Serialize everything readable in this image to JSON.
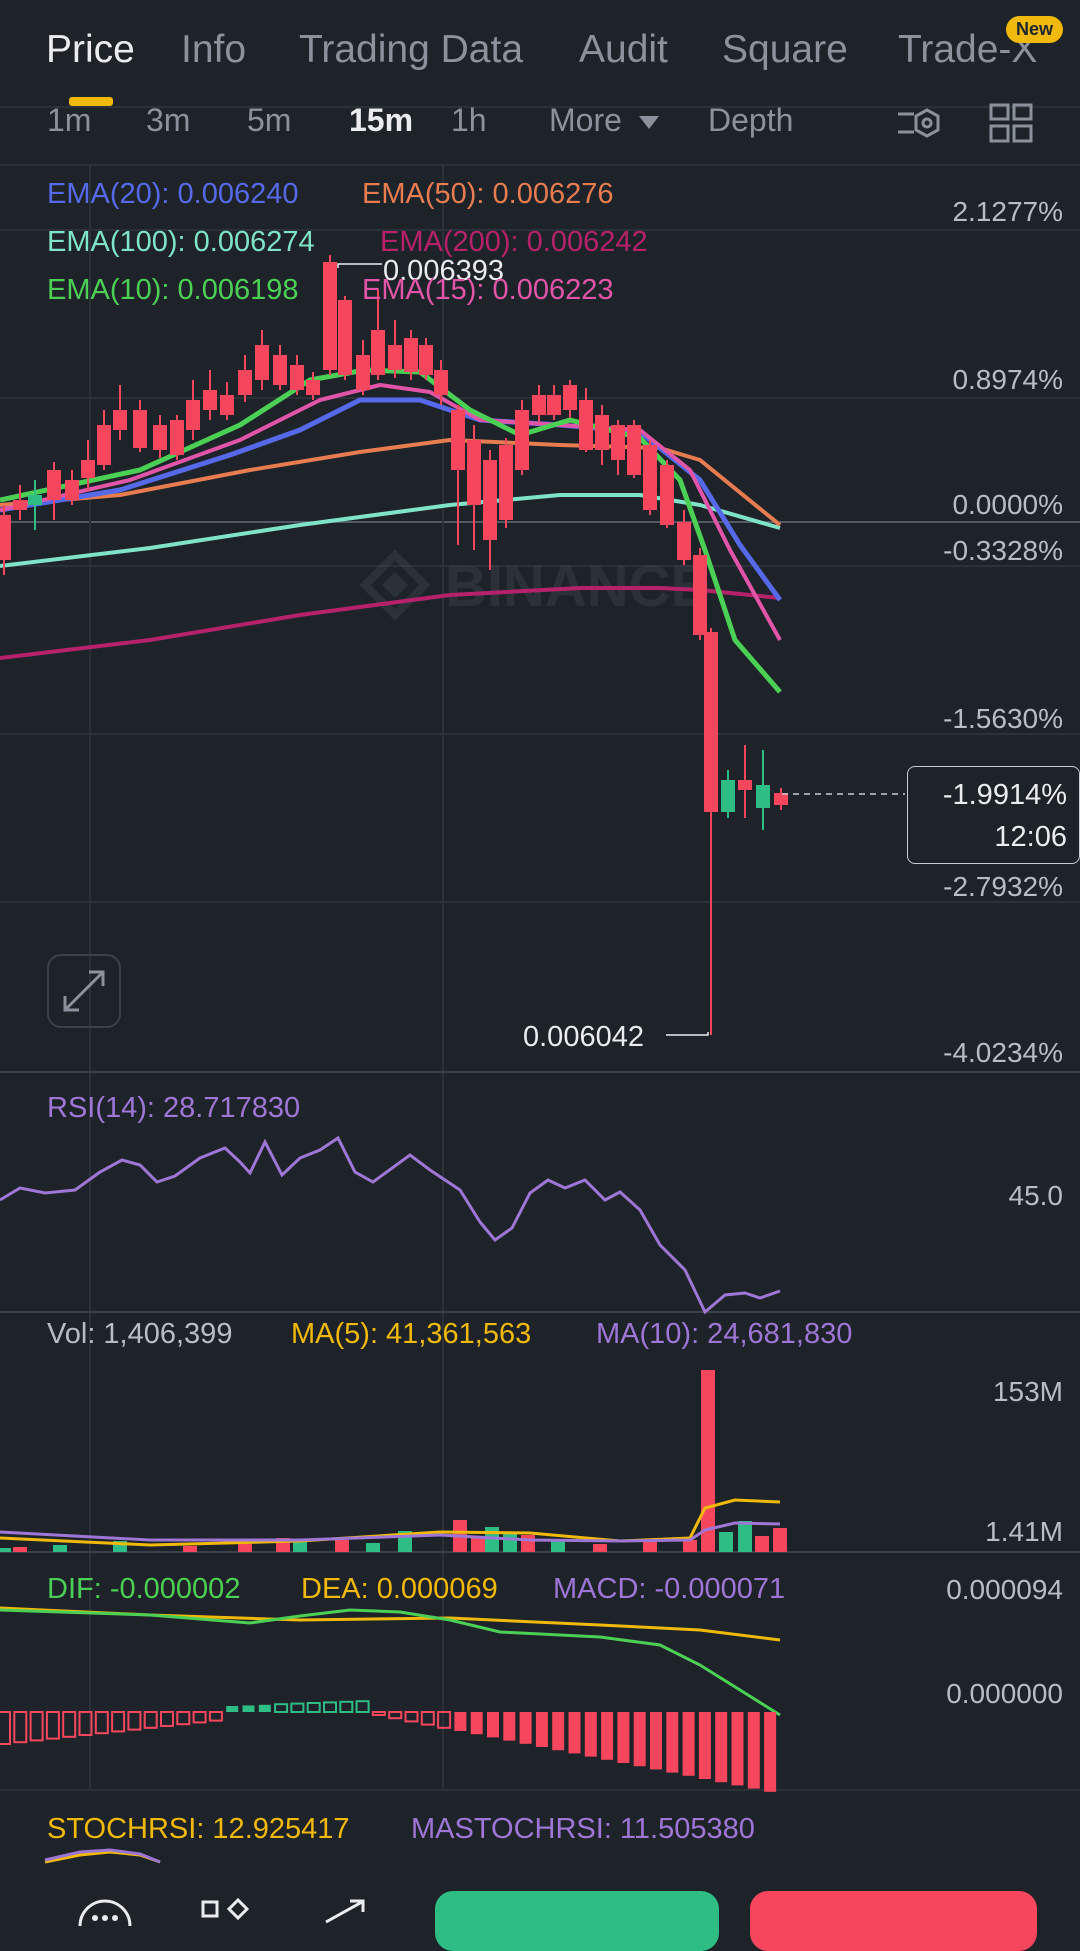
{
  "tabs": [
    {
      "label": "Price",
      "active": true
    },
    {
      "label": "Info"
    },
    {
      "label": "Trading Data"
    },
    {
      "label": "Audit"
    },
    {
      "label": "Square"
    },
    {
      "label": "Trade-X"
    }
  ],
  "new_badge": "New",
  "timeframes": {
    "items": [
      "1m",
      "3m",
      "5m",
      "15m",
      "1h"
    ],
    "active": "15m",
    "more": "More",
    "depth": "Depth"
  },
  "ema": {
    "ema20": "EMA(20): 0.006240",
    "ema50": "EMA(50): 0.006276",
    "ema100": "EMA(100): 0.006274",
    "ema200": "EMA(200): 0.006242",
    "ema10": "EMA(10): 0.006198",
    "ema15": "EMA(15): 0.006223"
  },
  "colors": {
    "ema20": "#5669e8",
    "ema50": "#e67c50",
    "ema100": "#7fe3c8",
    "ema200": "#b5226a",
    "ema10": "#4ccf55",
    "ema15": "#e155a8",
    "up": "#2ebd85",
    "down": "#f6465d",
    "rsi": "#9e76d6",
    "ma5": "#f0b90b",
    "ma10": "#9e76d6",
    "accent": "#f0b90b"
  },
  "price_axis": [
    "2.1277%",
    "0.8974%",
    "0.0000%",
    "-0.3328%",
    "-1.5630%",
    "-2.7932%",
    "-4.0234%"
  ],
  "high_label": "0.006393",
  "low_label": "0.006042",
  "current": {
    "change": "-1.9914%",
    "countdown": "12:06"
  },
  "watermark": "BINANCE",
  "rsi": {
    "label": "RSI(14): 28.717830",
    "axis": "45.0"
  },
  "vol": {
    "vol": "Vol: 1,406,399",
    "ma5": "MA(5): 41,361,563",
    "ma10": "MA(10): 24,681,830",
    "axis_top": "153M",
    "axis_bottom": "1.41M"
  },
  "macd": {
    "dif": "DIF: -0.000002",
    "dea": "DEA: 0.000069",
    "macd": "MACD: -0.000071",
    "axis_top": "0.000094",
    "axis_zero": "0.000000"
  },
  "stoch": {
    "stochrsi": "STOCHRSI: 12.925417",
    "mastochrsi": "MASTOCHRSI: 11.505380"
  },
  "icons": [
    "expand-icon",
    "indicator-settings-icon",
    "layout-grid-icon",
    "more-dots-icon",
    "widgets-icon",
    "share-icon"
  ]
}
